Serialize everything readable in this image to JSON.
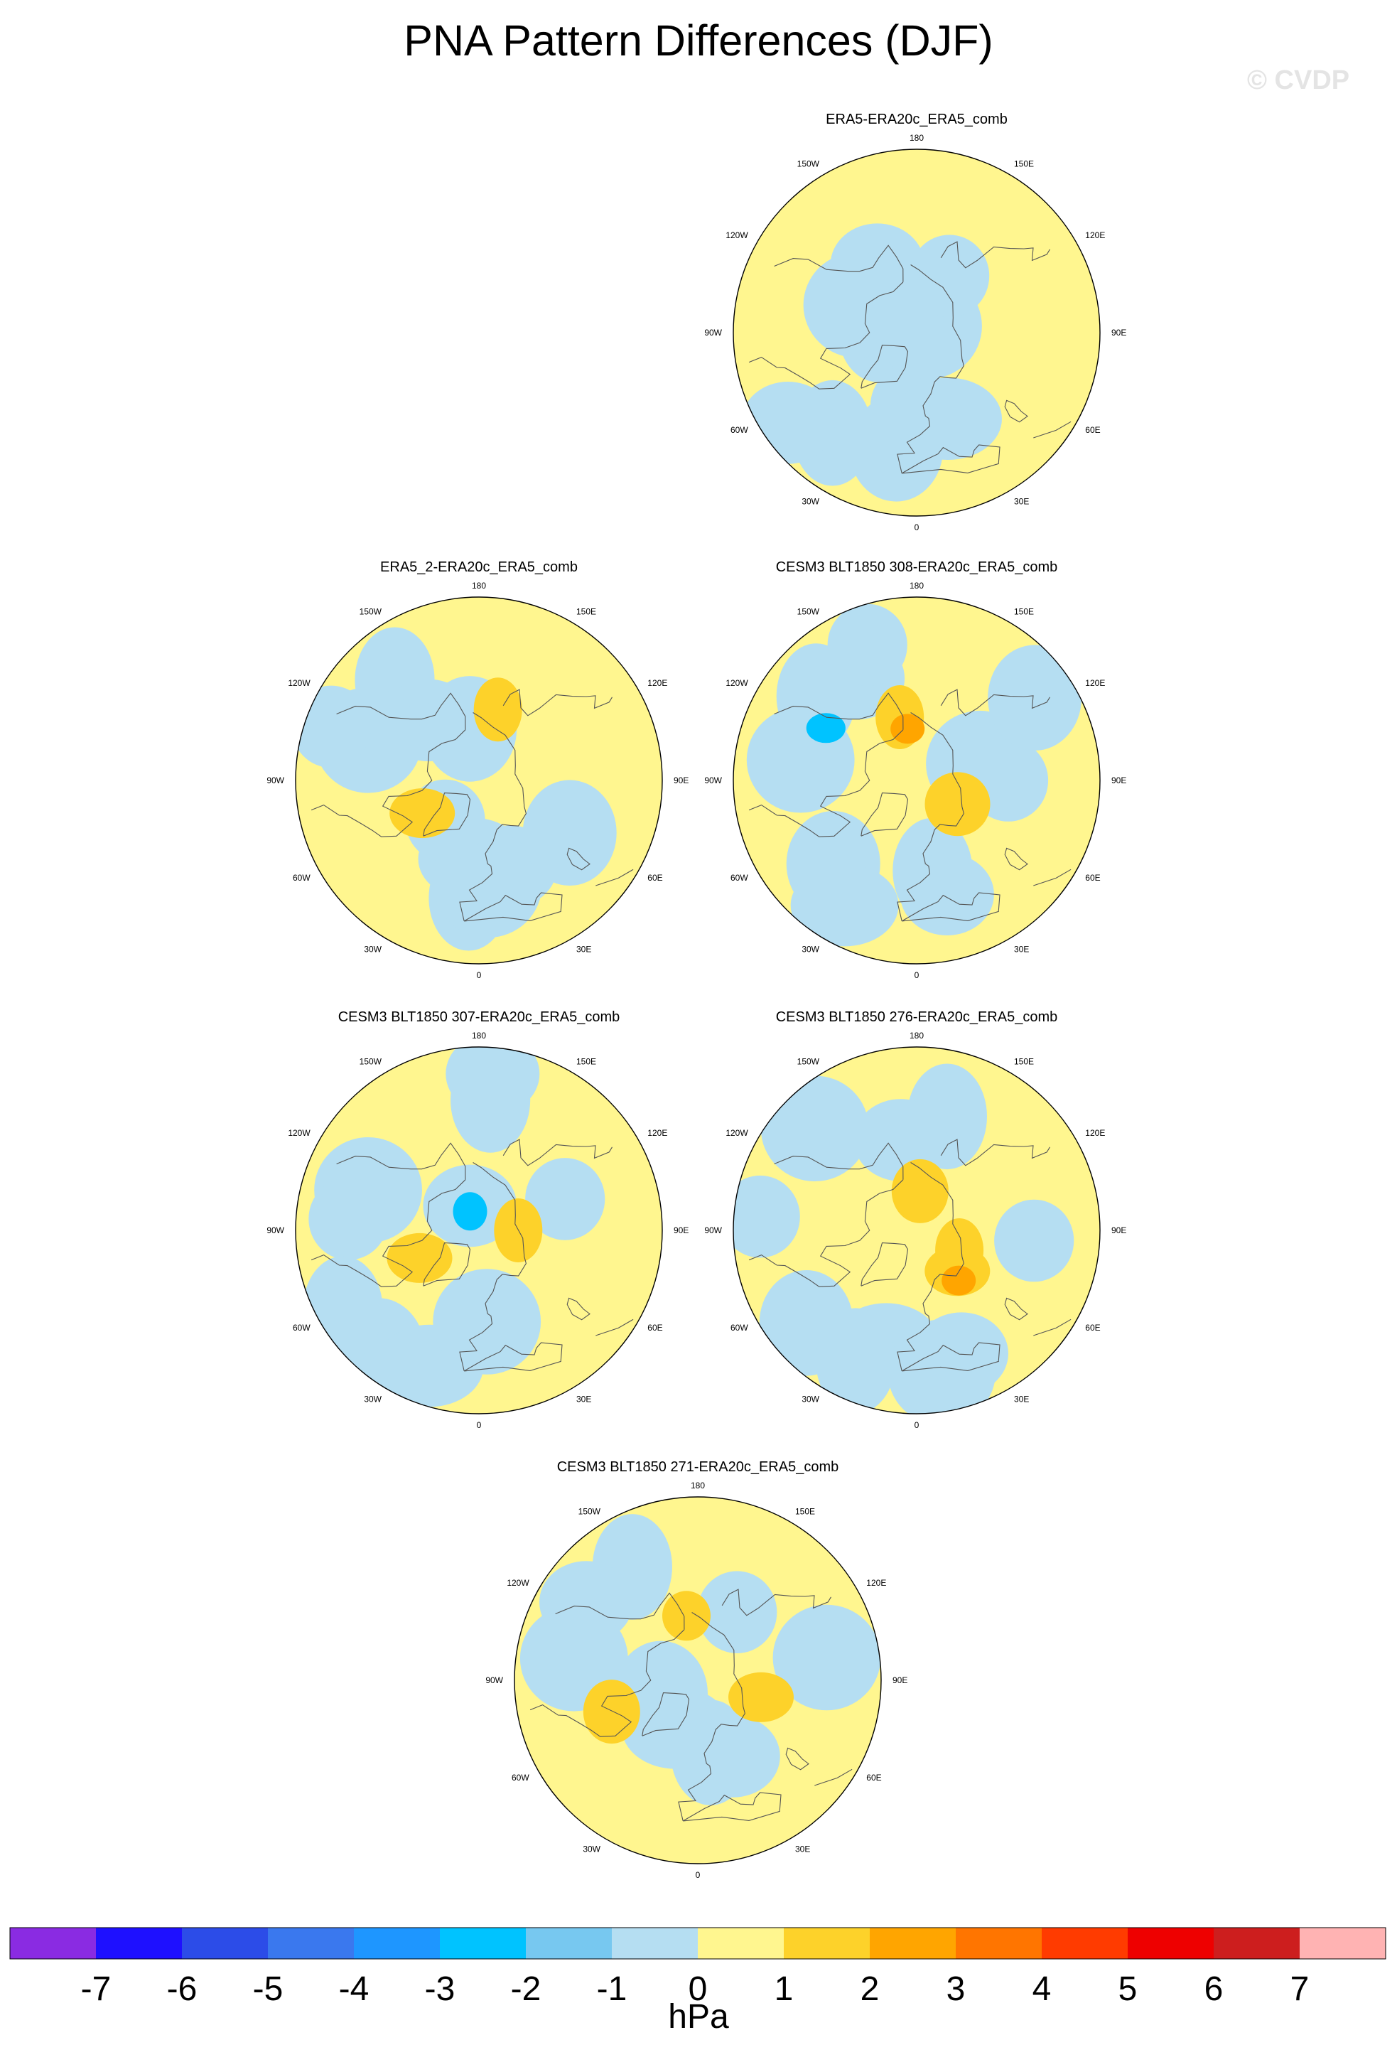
{
  "title": "PNA Pattern Differences (DJF)",
  "watermark": "© CVDP",
  "colorbar": {
    "units": "hPa",
    "ticks": [
      "-7",
      "-6",
      "-5",
      "-4",
      "-3",
      "-2",
      "-1",
      "0",
      "1",
      "2",
      "3",
      "4",
      "5",
      "6",
      "7"
    ],
    "colors": [
      "#8a2be2",
      "#1e10ff",
      "#2c4ce8",
      "#3a78ee",
      "#1e96ff",
      "#00c3ff",
      "#77c8f0",
      "#b5def2",
      "#fff68f",
      "#fdd22a",
      "#ffa500",
      "#ff7500",
      "#ff3b00",
      "#ee0000",
      "#cd1e1e",
      "#ffb3b3"
    ]
  },
  "chart_data": [
    {
      "type": "heatmap",
      "projection": "north-polar-stereographic",
      "title": "ERA5-ERA20c_ERA5_comb",
      "lon_labels": [
        "180",
        "150E",
        "120E",
        "90E",
        "60E",
        "30E",
        "0",
        "30W",
        "60W",
        "90W",
        "120W",
        "150W"
      ],
      "anomaly_regions": [
        {
          "lat": 75,
          "lon": -95,
          "value": -0.5
        },
        {
          "lat": 60,
          "lon": -150,
          "value": -0.5
        },
        {
          "lat": 65,
          "lon": -115,
          "value": -0.5
        },
        {
          "lat": 62,
          "lon": -5,
          "value": -0.5
        },
        {
          "lat": 45,
          "lon": -10,
          "value": -0.5
        },
        {
          "lat": 55,
          "lon": 20,
          "value": -0.5
        },
        {
          "lat": 40,
          "lon": -40,
          "value": -0.5
        },
        {
          "lat": 30,
          "lon": -55,
          "value": -0.5
        },
        {
          "lat": 85,
          "lon": 120,
          "value": -0.5
        },
        {
          "lat": 65,
          "lon": 150,
          "value": -0.5
        }
      ]
    },
    {
      "type": "heatmap",
      "projection": "north-polar-stereographic",
      "title": "ERA5_2-ERA20c_ERA5_comb",
      "lon_labels": [
        "180",
        "150E",
        "120E",
        "90E",
        "60E",
        "30E",
        "0",
        "30W",
        "60W",
        "90W",
        "120W",
        "150W"
      ],
      "anomaly_regions": [
        {
          "lat": 40,
          "lon": -140,
          "value": -0.5
        },
        {
          "lat": 60,
          "lon": -140,
          "value": -0.5
        },
        {
          "lat": 45,
          "lon": -110,
          "value": -0.5
        },
        {
          "lat": 30,
          "lon": -110,
          "value": -0.5
        },
        {
          "lat": 70,
          "lon": -170,
          "value": -0.5
        },
        {
          "lat": 60,
          "lon": -5,
          "value": -0.5
        },
        {
          "lat": 45,
          "lon": -5,
          "value": -0.5
        },
        {
          "lat": 55,
          "lon": 20,
          "value": -0.5
        },
        {
          "lat": 50,
          "lon": 5,
          "value": -0.5
        },
        {
          "lat": 70,
          "lon": -40,
          "value": -0.5
        },
        {
          "lat": 50,
          "lon": 60,
          "value": -0.5
        },
        {
          "lat": 65,
          "lon": -60,
          "value": 1.5
        },
        {
          "lat": 62,
          "lon": 165,
          "value": 1.5
        }
      ]
    },
    {
      "type": "heatmap",
      "projection": "north-polar-stereographic",
      "title": "CESM3 BLT1850 308-ERA20c_ERA5_comb",
      "lon_labels": [
        "180",
        "150E",
        "120E",
        "90E",
        "60E",
        "30E",
        "0",
        "30W",
        "60W",
        "90W",
        "120W",
        "150W"
      ],
      "anomaly_regions": [
        {
          "lat": 40,
          "lon": -130,
          "value": -0.5
        },
        {
          "lat": 45,
          "lon": -150,
          "value": -0.5
        },
        {
          "lat": 45,
          "lon": -100,
          "value": -0.5
        },
        {
          "lat": 35,
          "lon": -160,
          "value": -0.5
        },
        {
          "lat": 45,
          "lon": -45,
          "value": -0.5
        },
        {
          "lat": 35,
          "lon": -30,
          "value": -0.5
        },
        {
          "lat": 55,
          "lon": 10,
          "value": -0.5
        },
        {
          "lat": 45,
          "lon": 15,
          "value": -0.5
        },
        {
          "lat": 65,
          "lon": 105,
          "value": -0.5
        },
        {
          "lat": 55,
          "lon": 90,
          "value": -0.5
        },
        {
          "lat": 35,
          "lon": 125,
          "value": -0.5
        },
        {
          "lat": 50,
          "lon": -120,
          "value": -2.5
        },
        {
          "lat": 65,
          "lon": -165,
          "value": 1.5
        },
        {
          "lat": 70,
          "lon": -170,
          "value": 2.5
        },
        {
          "lat": 72,
          "lon": 60,
          "value": 1.5
        }
      ]
    },
    {
      "type": "heatmap",
      "projection": "north-polar-stereographic",
      "title": "CESM3 BLT1850 307-ERA20c_ERA5_comb",
      "lon_labels": [
        "180",
        "150E",
        "120E",
        "90E",
        "60E",
        "30E",
        "0",
        "30W",
        "60W",
        "90W",
        "120W",
        "150W"
      ],
      "anomaly_regions": [
        {
          "lat": 40,
          "lon": 175,
          "value": -0.5
        },
        {
          "lat": 30,
          "lon": 175,
          "value": -0.5
        },
        {
          "lat": 45,
          "lon": -110,
          "value": -0.5
        },
        {
          "lat": 40,
          "lon": -95,
          "value": -0.5
        },
        {
          "lat": 30,
          "lon": -40,
          "value": -0.5
        },
        {
          "lat": 35,
          "lon": -20,
          "value": -0.5
        },
        {
          "lat": 30,
          "lon": -60,
          "value": -0.5
        },
        {
          "lat": 80,
          "lon": -160,
          "value": -0.5
        },
        {
          "lat": 55,
          "lon": 5,
          "value": -0.5
        },
        {
          "lat": 55,
          "lon": 110,
          "value": -0.5
        },
        {
          "lat": 82,
          "lon": -155,
          "value": -2.5
        },
        {
          "lat": 65,
          "lon": -65,
          "value": 1.5
        },
        {
          "lat": 75,
          "lon": 90,
          "value": 1.5
        }
      ]
    },
    {
      "type": "heatmap",
      "projection": "north-polar-stereographic",
      "title": "CESM3 BLT1850 276-ERA20c_ERA5_comb",
      "lon_labels": [
        "180",
        "150E",
        "120E",
        "90E",
        "60E",
        "30E",
        "0",
        "30W",
        "60W",
        "90W",
        "120W",
        "150W"
      ],
      "anomaly_regions": [
        {
          "lat": 45,
          "lon": 165,
          "value": -0.5
        },
        {
          "lat": 55,
          "lon": -170,
          "value": -0.5
        },
        {
          "lat": 35,
          "lon": -135,
          "value": -0.5
        },
        {
          "lat": 30,
          "lon": -95,
          "value": -0.5
        },
        {
          "lat": 35,
          "lon": -50,
          "value": -0.5
        },
        {
          "lat": 45,
          "lon": -15,
          "value": -0.5
        },
        {
          "lat": 35,
          "lon": -25,
          "value": -0.5
        },
        {
          "lat": 40,
          "lon": 20,
          "value": -0.5
        },
        {
          "lat": 35,
          "lon": 10,
          "value": -0.5
        },
        {
          "lat": 45,
          "lon": 85,
          "value": -0.5
        },
        {
          "lat": 75,
          "lon": 175,
          "value": 1.5
        },
        {
          "lat": 68,
          "lon": 45,
          "value": 1.5
        },
        {
          "lat": 72,
          "lon": 65,
          "value": 1.5
        },
        {
          "lat": 65,
          "lon": 40,
          "value": 2.5
        }
      ]
    },
    {
      "type": "heatmap",
      "projection": "north-polar-stereographic",
      "title": "CESM3 BLT1850 271-ERA20c_ERA5_comb",
      "lon_labels": [
        "180",
        "150E",
        "120E",
        "90E",
        "60E",
        "30E",
        "0",
        "30W",
        "60W",
        "90W",
        "120W",
        "150W"
      ],
      "anomaly_regions": [
        {
          "lat": 40,
          "lon": -150,
          "value": -0.5
        },
        {
          "lat": 38,
          "lon": -125,
          "value": -0.5
        },
        {
          "lat": 42,
          "lon": -100,
          "value": -0.5
        },
        {
          "lat": 60,
          "lon": 150,
          "value": -0.5
        },
        {
          "lat": 75,
          "lon": -70,
          "value": -0.5
        },
        {
          "lat": 70,
          "lon": -25,
          "value": -0.5
        },
        {
          "lat": 62,
          "lon": 10,
          "value": -0.5
        },
        {
          "lat": 58,
          "lon": 25,
          "value": -0.5
        },
        {
          "lat": 40,
          "lon": 100,
          "value": -0.5
        },
        {
          "lat": 65,
          "lon": -170,
          "value": 1.5
        },
        {
          "lat": 55,
          "lon": -70,
          "value": 1.5
        },
        {
          "lat": 65,
          "lon": 75,
          "value": 1.5
        }
      ]
    }
  ]
}
